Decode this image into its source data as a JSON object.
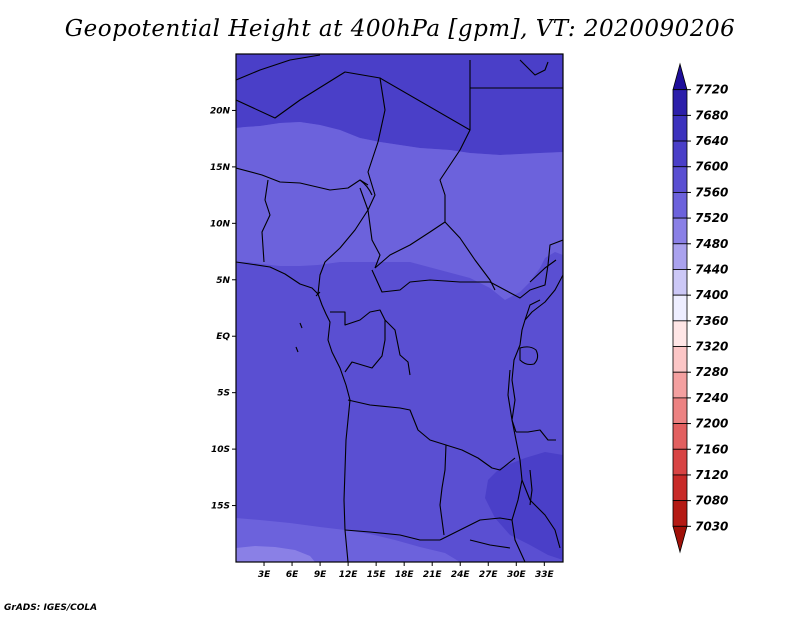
{
  "title": "Geopotential Height at 400hPa [gpm], VT: 2020090206",
  "footer": "GrADS: IGES/COLA",
  "map": {
    "lon_range": [
      0,
      35
    ],
    "lat_range": [
      -20,
      25
    ],
    "lon_ticks": [
      {
        "value": 3,
        "label": "3E"
      },
      {
        "value": 6,
        "label": "6E"
      },
      {
        "value": 9,
        "label": "9E"
      },
      {
        "value": 12,
        "label": "12E"
      },
      {
        "value": 15,
        "label": "15E"
      },
      {
        "value": 18,
        "label": "18E"
      },
      {
        "value": 21,
        "label": "21E"
      },
      {
        "value": 24,
        "label": "24E"
      },
      {
        "value": 27,
        "label": "27E"
      },
      {
        "value": 30,
        "label": "30E"
      },
      {
        "value": 33,
        "label": "33E"
      }
    ],
    "lat_ticks": [
      {
        "value": 20,
        "label": "20N"
      },
      {
        "value": 15,
        "label": "15N"
      },
      {
        "value": 10,
        "label": "10N"
      },
      {
        "value": 5,
        "label": "5N"
      },
      {
        "value": 0,
        "label": "EQ"
      },
      {
        "value": -5,
        "label": "5S"
      },
      {
        "value": -10,
        "label": "10S"
      },
      {
        "value": -15,
        "label": "15S"
      }
    ]
  },
  "colorbar": {
    "levels": [
      7720,
      7680,
      7640,
      7600,
      7560,
      7520,
      7480,
      7440,
      7400,
      7360,
      7320,
      7280,
      7240,
      7200,
      7160,
      7120,
      7080,
      7030
    ],
    "colors": [
      "#1e0e9a",
      "#2c1faa",
      "#3c32be",
      "#4a3fc8",
      "#5a4fd2",
      "#6c62dc",
      "#8a80e6",
      "#aaa2ee",
      "#ccc8f6",
      "#eeeeff",
      "#ffe6e6",
      "#fcc6c6",
      "#f4a0a0",
      "#ec8282",
      "#e26060",
      "#d84444",
      "#c82a28",
      "#b41a14",
      "#a01008"
    ]
  },
  "field_colors": {
    "north_7600_7640": "#4a3fc8",
    "main_7560_7600": "#5a4fd2",
    "central_7520_7560": "#6c62dc",
    "south_7480_7520": "#8a80e6"
  }
}
